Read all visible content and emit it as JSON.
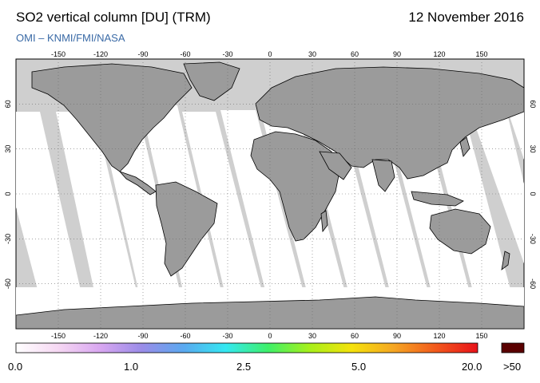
{
  "header": {
    "title": "SO2 vertical column [DU] (TRM)",
    "date": "12 November 2016",
    "credit": "OMI  –  KNMI/FMI/NASA"
  },
  "map": {
    "lon_ticks": [
      "-150",
      "-120",
      "-90",
      "-60",
      "-30",
      "0",
      "30",
      "60",
      "90",
      "120",
      "150"
    ],
    "lat_ticks_left": [
      "60",
      "30",
      "0",
      "-30",
      "-60"
    ],
    "lat_ticks_right": [
      "60",
      "30",
      "0",
      "-30",
      "-60"
    ],
    "colors": {
      "land": "#9b9b9b",
      "no_data": "#cfcfcf",
      "swath": "#ffffff",
      "grid": "#6c6c6c",
      "coast": "#000000"
    }
  },
  "colorbar": {
    "labels": [
      "0.0",
      "1.0",
      "2.5",
      "5.0",
      "20.0"
    ],
    "overflow_label": ">50",
    "overflow_color": "#5a0000",
    "gradient": [
      "#ffffff",
      "#f6d8f3",
      "#d9a7f1",
      "#9a8ce8",
      "#5aa9f0",
      "#34e8f2",
      "#3ef06a",
      "#a8f01a",
      "#f5e20c",
      "#f5a623",
      "#f2591c",
      "#e8121a"
    ]
  }
}
